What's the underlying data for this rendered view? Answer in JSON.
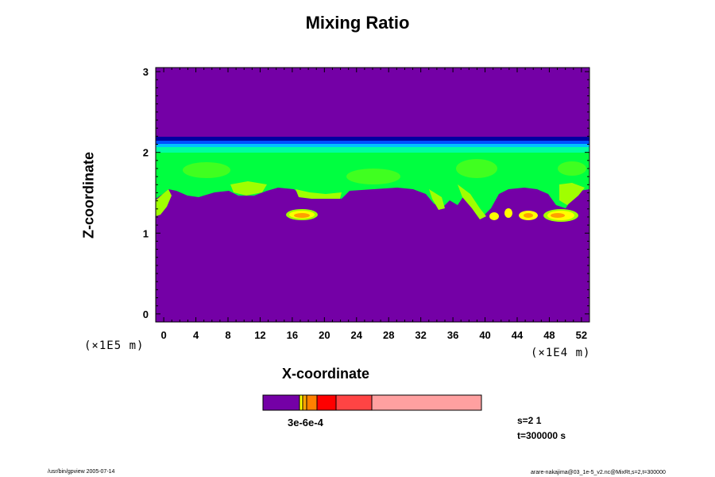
{
  "chart_data": {
    "type": "heatmap",
    "title": "Mixing Ratio",
    "xlabel": "X-coordinate",
    "ylabel": "Z-coordinate",
    "x_unit": "(×1E4 m)",
    "z_unit": "(×1E5 m)",
    "xlim": [
      -1,
      53
    ],
    "ylim": [
      -0.1,
      3.05
    ],
    "x_ticks": [
      "0",
      "4",
      "8",
      "12",
      "16",
      "20",
      "24",
      "28",
      "32",
      "36",
      "40",
      "44",
      "48",
      "52"
    ],
    "y_ticks": [
      "0",
      "1",
      "2",
      "3"
    ],
    "colorbar_label": "3e-6e-4",
    "background_color": "#7400a6",
    "level_colors": [
      "#7400a6",
      "#ffff00",
      "#ffa500",
      "#ff8000",
      "#ff0000",
      "#ff4444",
      "#ffa0a0"
    ],
    "layer_colors": [
      "#0000a0",
      "#0050ff",
      "#00c0ff",
      "#00ffa0",
      "#00ff40"
    ],
    "patch_colors": [
      "#a0ff00",
      "#ffff00",
      "#ffa000"
    ]
  },
  "info": {
    "s": "s=2 1",
    "t": "t=300000 s"
  },
  "footer": {
    "left": "/usr/bin/gpview 2005-07-14",
    "right": "arare-nakajima@03_1e-5_v2.nc@MixRt,s=2,t=300000"
  }
}
